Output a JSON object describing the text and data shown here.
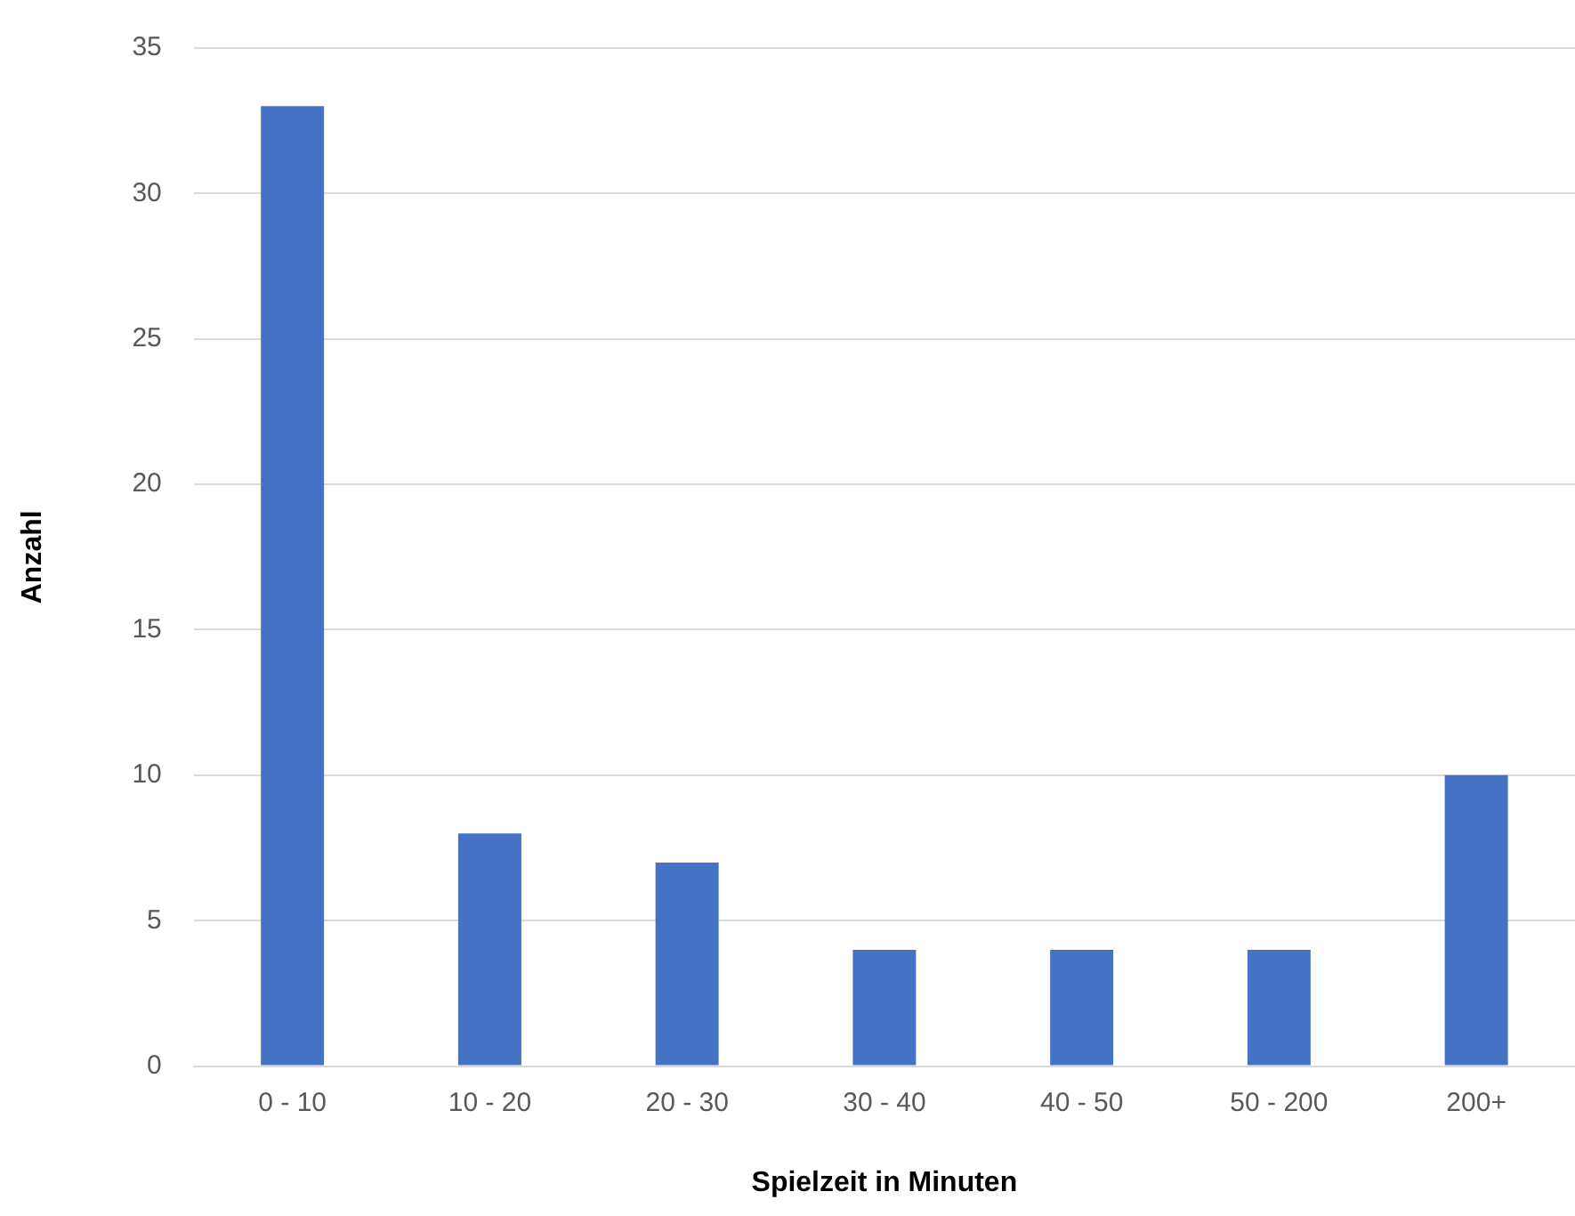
{
  "chart_data": {
    "type": "bar",
    "xlabel": "Spielzeit in Minuten",
    "ylabel": "Anzahl",
    "categories": [
      "0 - 10",
      "10 - 20",
      "20 - 30",
      "30 - 40",
      "40 - 50",
      "50 - 200",
      "200+"
    ],
    "values": [
      33,
      8,
      7,
      4,
      4,
      4,
      10
    ],
    "color": "#4472c4",
    "ylim": [
      0,
      35
    ],
    "yticks": [
      0,
      5,
      10,
      15,
      20,
      25,
      30,
      35
    ],
    "grid": "y"
  }
}
